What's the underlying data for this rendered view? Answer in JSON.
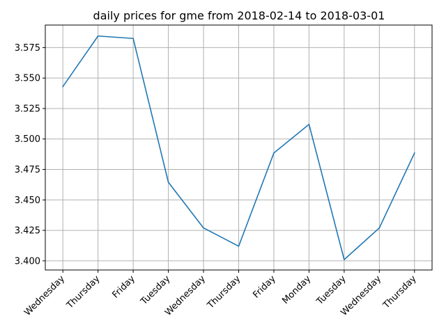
{
  "chart_data": {
    "type": "line",
    "title": "daily prices for gme from 2018-02-14 to 2018-03-01",
    "xlabel": "",
    "ylabel": "",
    "categories": [
      "Wednesday",
      "Thursday",
      "Friday",
      "Tuesday",
      "Wednesday",
      "Thursday",
      "Friday",
      "Monday",
      "Tuesday",
      "Wednesday",
      "Thursday"
    ],
    "series": [
      {
        "values": [
          3.543,
          3.5845,
          3.5825,
          3.4645,
          3.427,
          3.412,
          3.4885,
          3.512,
          3.401,
          3.427,
          3.4885
        ]
      }
    ],
    "yticks": [
      "3.400",
      "3.425",
      "3.450",
      "3.475",
      "3.500",
      "3.525",
      "3.550",
      "3.575"
    ],
    "ylim": [
      3.3925,
      3.5935
    ],
    "grid": true,
    "colors": {
      "line": "#1f77b4",
      "grid": "#b0b0b0",
      "axis": "#000000"
    }
  }
}
